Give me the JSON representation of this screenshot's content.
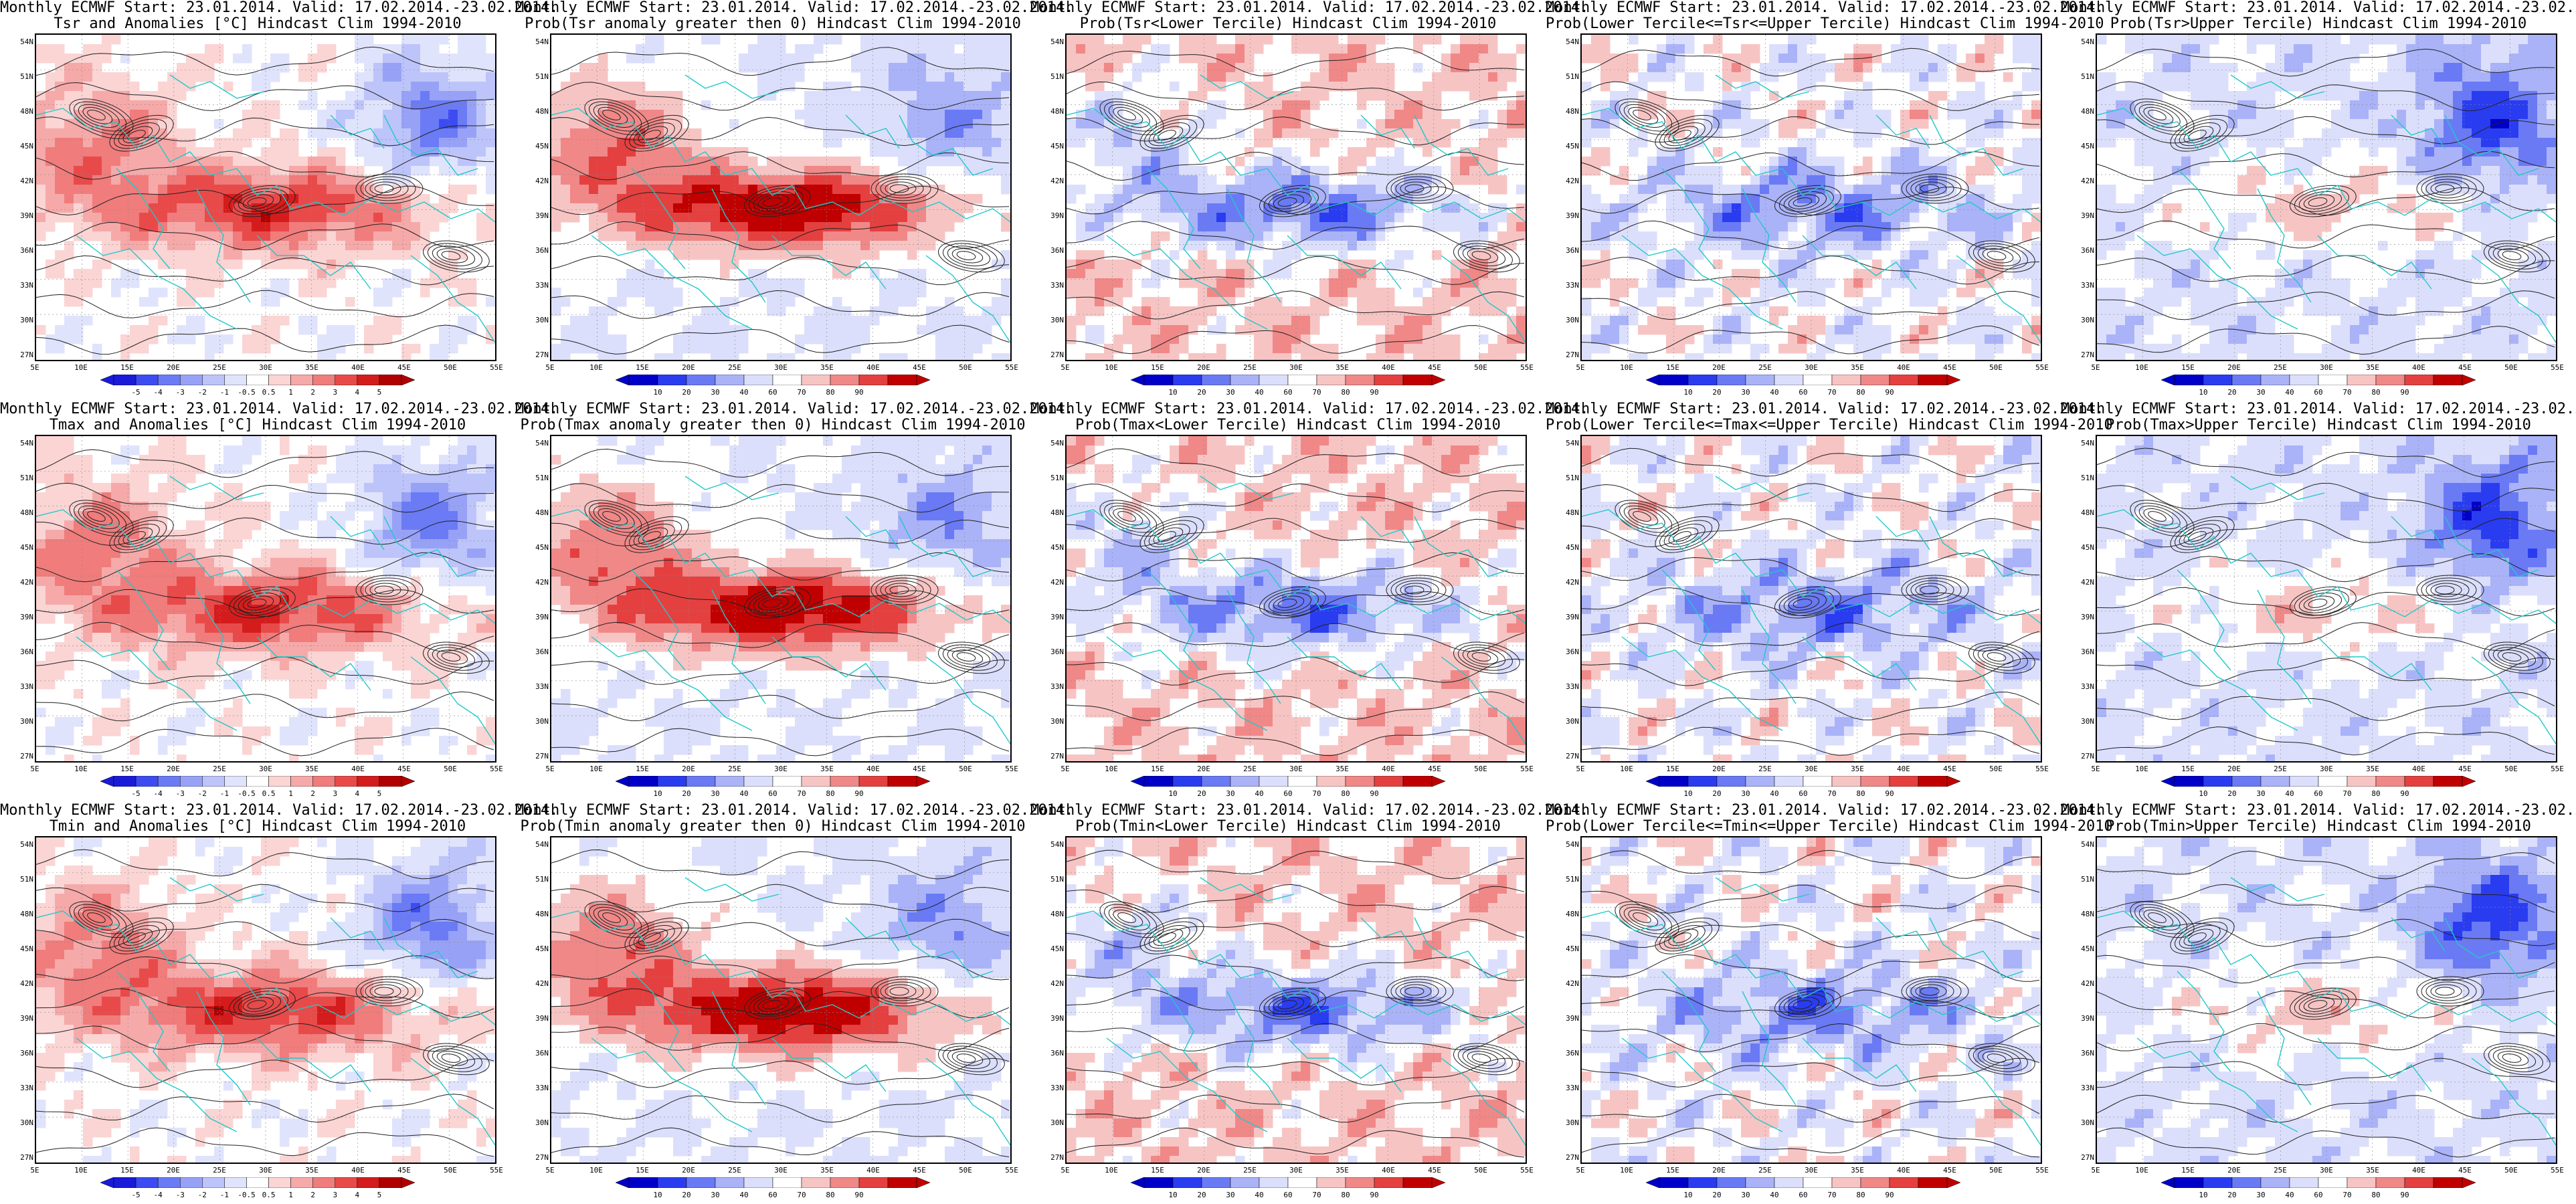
{
  "header_line": "Monthly ECMWF Start: 23.01.2014. Valid: 17.02.2014.-23.02.2014.",
  "lat_labels": [
    "54N",
    "51N",
    "48N",
    "45N",
    "42N",
    "39N",
    "36N",
    "33N",
    "30N",
    "27N"
  ],
  "lon_labels": [
    "5E",
    "10E",
    "15E",
    "20E",
    "25E",
    "30E",
    "35E",
    "40E",
    "45E",
    "50E",
    "55E"
  ],
  "anomaly_scale": [
    "-5",
    "-4",
    "-3",
    "-2",
    "-1",
    "-0.5",
    "0.5",
    "1",
    "2",
    "3",
    "4",
    "5"
  ],
  "prob_scale": [
    "10",
    "20",
    "30",
    "40",
    "60",
    "70",
    "80",
    "90"
  ],
  "colors": {
    "anomaly": [
      "#1a1ad9",
      "#3c4cf0",
      "#6b7bf5",
      "#97a2f7",
      "#bdc4fa",
      "#e0e3fc",
      "#ffffff",
      "#fbd4d4",
      "#f6a9a9",
      "#f07c7c",
      "#e84a4a",
      "#d41c1c",
      "#b00000"
    ],
    "prob": [
      "#0000c8",
      "#2a3cf0",
      "#6a7af5",
      "#aab3f8",
      "#dcdffb",
      "#ffffff",
      "#f7c4c4",
      "#f08888",
      "#e44040",
      "#c00000"
    ],
    "coast": "#22c8c8",
    "contour": "#222222"
  },
  "rows": [
    {
      "variable": "Tsr",
      "panels": [
        {
          "id": "tsr-anom",
          "title2": "Tsr and Anomalies [°C] Hindcast Clim 1994-2010",
          "kind": "anomaly",
          "tone": "anomaly"
        },
        {
          "id": "tsr-prob-gt0",
          "title2": "Prob(Tsr anomaly greater then 0) Hindcast Clim 1994-2010",
          "kind": "prob",
          "tone": "warm"
        },
        {
          "id": "tsr-lower",
          "title2": "Prob(Tsr<Lower Tercile) Hindcast Clim 1994-2010",
          "kind": "prob",
          "tone": "cold"
        },
        {
          "id": "tsr-middle",
          "title2": "Prob(Lower Tercile<=Tsr<=Upper Tercile) Hindcast Clim 1994-2010",
          "kind": "prob",
          "tone": "mixcold"
        },
        {
          "id": "tsr-upper",
          "title2": "Prob(Tsr>Upper Tercile) Hindcast Clim 1994-2010",
          "kind": "prob",
          "tone": "light"
        }
      ]
    },
    {
      "variable": "Tmax",
      "panels": [
        {
          "id": "tmax-anom",
          "title2": "Tmax and Anomalies [°C] Hindcast Clim 1994-2010",
          "kind": "anomaly",
          "tone": "anomaly"
        },
        {
          "id": "tmax-prob-gt0",
          "title2": "Prob(Tmax anomaly greater then 0) Hindcast Clim 1994-2010",
          "kind": "prob",
          "tone": "warm"
        },
        {
          "id": "tmax-lower",
          "title2": "Prob(Tmax<Lower Tercile) Hindcast Clim 1994-2010",
          "kind": "prob",
          "tone": "cold"
        },
        {
          "id": "tmax-middle",
          "title2": "Prob(Lower Tercile<=Tmax<=Upper Tercile) Hindcast Clim 1994-2010",
          "kind": "prob",
          "tone": "mixcold"
        },
        {
          "id": "tmax-upper",
          "title2": "Prob(Tmax>Upper Tercile) Hindcast Clim 1994-2010",
          "kind": "prob",
          "tone": "light"
        }
      ]
    },
    {
      "variable": "Tmin",
      "panels": [
        {
          "id": "tmin-anom",
          "title2": "Tmin and Anomalies [°C] Hindcast Clim 1994-2010",
          "kind": "anomaly",
          "tone": "anomaly"
        },
        {
          "id": "tmin-prob-gt0",
          "title2": "Prob(Tmin anomaly greater then 0) Hindcast Clim 1994-2010",
          "kind": "prob",
          "tone": "warm"
        },
        {
          "id": "tmin-lower",
          "title2": "Prob(Tmin<Lower Tercile) Hindcast Clim 1994-2010",
          "kind": "prob",
          "tone": "cold"
        },
        {
          "id": "tmin-middle",
          "title2": "Prob(Lower Tercile<=Tmin<=Upper Tercile) Hindcast Clim 1994-2010",
          "kind": "prob",
          "tone": "mixcold"
        },
        {
          "id": "tmin-upper",
          "title2": "Prob(Tmin>Upper Tercile) Hindcast Clim 1994-2010",
          "kind": "prob",
          "tone": "light"
        }
      ]
    }
  ]
}
